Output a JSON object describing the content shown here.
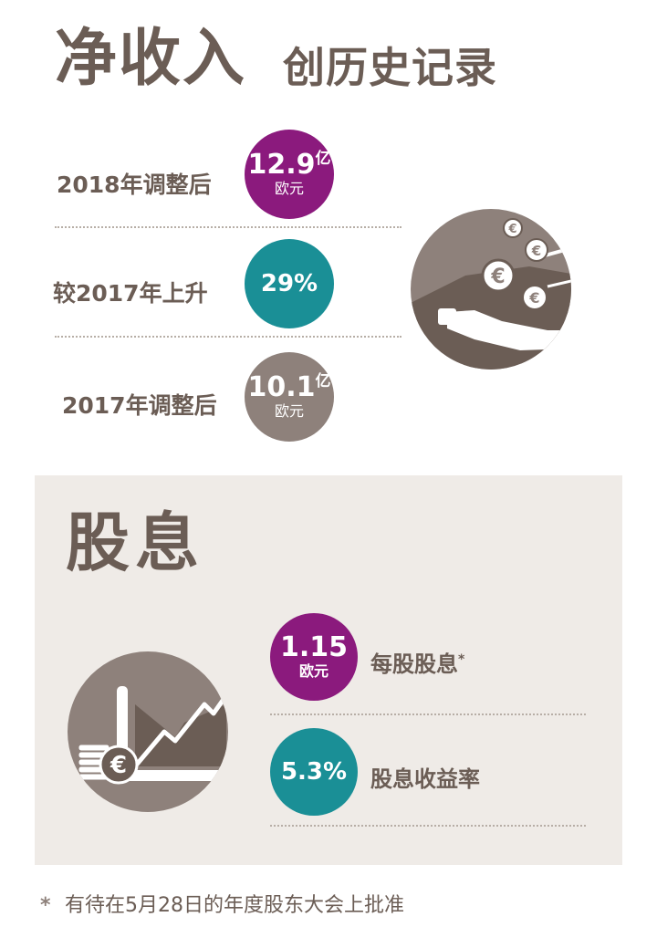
{
  "header": {
    "title_main": "净收入",
    "title_sub": "创历史记录"
  },
  "income": {
    "rows": [
      {
        "label": "2018年调整后",
        "value": "12.9",
        "unit": "亿",
        "sub": "欧元",
        "color": "#8b1a7d"
      },
      {
        "label": "较2017年上升",
        "value": "29%",
        "color": "#1a8f96"
      },
      {
        "label": "2017年调整后",
        "value": "10.1",
        "unit": "亿",
        "sub": "欧元",
        "color": "#8e817b"
      }
    ],
    "icon": "hand-with-euro-coins-icon"
  },
  "dividend": {
    "title": "股息",
    "icon": "rising-chart-with-euro-coins-icon",
    "rows": [
      {
        "value": "1.15",
        "sub": "欧元",
        "label": "每股股息",
        "mark": "*",
        "color": "#8b1a7d"
      },
      {
        "value": "5.3%",
        "label": "股息收益率",
        "color": "#1a8f96"
      }
    ]
  },
  "footnote": {
    "mark": "*",
    "text": "有待在5月28日的年度股东大会上批准"
  },
  "colors": {
    "text": "#6b5d55",
    "purple": "#8b1a7d",
    "teal": "#1a8f96",
    "gray": "#8e817b",
    "panel": "#efebe7"
  }
}
